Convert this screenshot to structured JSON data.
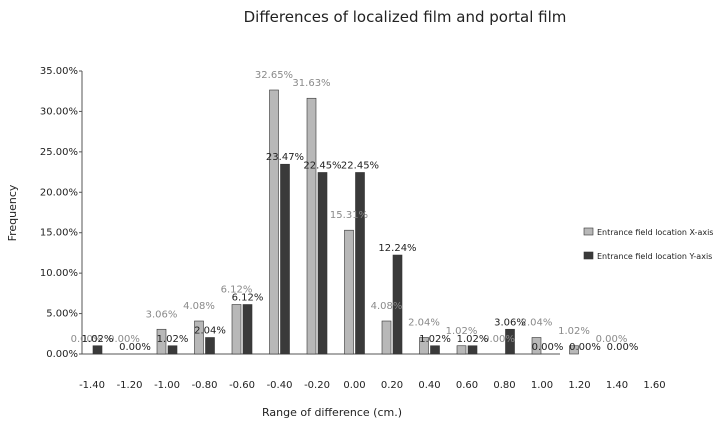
{
  "chart_data": {
    "type": "bar",
    "title": "Differences of localized film and portal film",
    "xlabel": "Range of difference (cm.)",
    "ylabel": "Frequency",
    "x_ticks": [
      "-1.40",
      "-1.20",
      "-1.00",
      "-0.80",
      "-0.60",
      "-0.40",
      "-0.20",
      "0.00",
      "0.20",
      "0.40",
      "0.60",
      "0.80",
      "1.00",
      "1.20",
      "1.40",
      "1.60"
    ],
    "y_ticks": [
      "0.00%",
      "5.00%",
      "10.00%",
      "15.00%",
      "20.00%",
      "25.00%",
      "30.00%",
      "35.00%"
    ],
    "ylim": [
      0,
      35
    ],
    "categories": [
      "-1.40",
      "-1.20",
      "-1.00",
      "-0.80",
      "-0.60",
      "-0.40",
      "-0.20",
      "0.00",
      "0.20",
      "0.40",
      "0.60",
      "0.80",
      "1.00",
      "1.20",
      "1.40"
    ],
    "series": [
      {
        "name": "Entrance field location X-axis",
        "color": "#b8b8b8",
        "values": [
          0.0,
          0.0,
          3.06,
          4.08,
          6.12,
          32.65,
          31.63,
          15.31,
          4.08,
          2.04,
          1.02,
          0.0,
          2.04,
          1.02,
          0.0
        ],
        "labels": [
          "0.00%",
          "0.00%",
          "3.06%",
          "4.08%",
          "6.12%",
          "32.65%",
          "31.63%",
          "15.31%",
          "4.08%",
          "2.04%",
          "1.02%",
          "0.00%",
          "2.04%",
          "1.02%",
          "0.00%"
        ]
      },
      {
        "name": "Entrance field location Y-axis",
        "color": "#3a3a3a",
        "values": [
          1.02,
          0.0,
          1.02,
          2.04,
          6.12,
          23.47,
          22.45,
          22.45,
          12.24,
          1.02,
          1.02,
          3.06,
          0.0,
          0.0,
          0.0
        ],
        "labels": [
          "1.02%",
          "0.00%",
          "1.02%",
          "2.04%",
          "6.12%",
          "23.47%",
          "22.45%",
          "22.45%",
          "12.24%",
          "1.02%",
          "1.02%",
          "3.06%",
          "0.00%",
          "0.00%",
          "0.00%"
        ]
      }
    ],
    "legend_position": "right",
    "grid": false
  }
}
